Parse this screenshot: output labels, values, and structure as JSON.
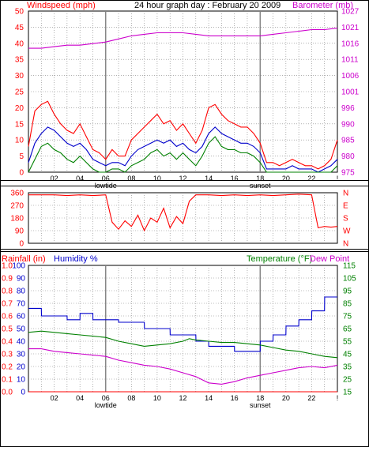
{
  "page": {
    "title": "24 hour graph day : February 20 2009"
  },
  "colors": {
    "red": "#ff0000",
    "blue": "#0000cc",
    "green": "#008000",
    "magenta": "#cc00cc",
    "gray": "#808080",
    "black": "#000000"
  },
  "chart_data": [
    {
      "type": "line",
      "name": "wind-barometer",
      "left_axis_label": "Windspeed (mph)",
      "right_axis_label": "Barometer (mb)",
      "x_ticks": [
        "02",
        "04",
        "06",
        "08",
        "10",
        "12",
        "14",
        "16",
        "18",
        "20",
        "22",
        "!"
      ],
      "x_markers": [
        {
          "label": "lowtide",
          "hour": 6
        },
        {
          "label": "sunset",
          "hour": 18
        }
      ],
      "left_ylim": [
        0,
        50
      ],
      "left_ticks": [
        0,
        5,
        10,
        15,
        20,
        25,
        30,
        35,
        40,
        45,
        50
      ],
      "right_ylim": [
        975,
        1027
      ],
      "right_ticks": [
        975,
        980,
        985,
        990,
        996,
        1001,
        1006,
        1011,
        1016,
        1021,
        1027
      ],
      "grid": true,
      "series": [
        {
          "role": "wind-gust",
          "color": "red",
          "axis": "left",
          "x": [
            0,
            0.5,
            1,
            1.5,
            2,
            2.5,
            3,
            3.5,
            4,
            4.5,
            5,
            5.5,
            6,
            6.5,
            7,
            7.5,
            8,
            8.5,
            9,
            9.5,
            10,
            10.5,
            11,
            11.5,
            12,
            12.5,
            13,
            13.5,
            14,
            14.5,
            15,
            15.5,
            16,
            16.5,
            17,
            17.5,
            18,
            18.5,
            19,
            19.5,
            20,
            20.5,
            21,
            21.5,
            22,
            22.5,
            23,
            23.5,
            24
          ],
          "y": [
            8,
            19,
            21,
            22,
            18,
            15,
            13,
            12,
            15,
            11,
            7,
            6,
            4,
            7,
            5,
            5,
            10,
            12,
            14,
            16,
            18,
            15,
            16,
            13,
            15,
            12,
            9,
            13,
            20,
            21,
            18,
            16,
            15,
            14,
            14,
            12,
            9,
            3,
            3,
            2,
            3,
            4,
            3,
            2,
            2,
            1,
            2,
            4,
            10
          ]
        },
        {
          "role": "wind-average",
          "color": "blue",
          "axis": "left",
          "x": [
            0,
            0.5,
            1,
            1.5,
            2,
            2.5,
            3,
            3.5,
            4,
            4.5,
            5,
            5.5,
            6,
            6.5,
            7,
            7.5,
            8,
            8.5,
            9,
            9.5,
            10,
            10.5,
            11,
            11.5,
            12,
            12.5,
            13,
            13.5,
            14,
            14.5,
            15,
            15.5,
            16,
            16.5,
            17,
            17.5,
            18,
            18.5,
            19,
            19.5,
            20,
            20.5,
            21,
            21.5,
            22,
            22.5,
            23,
            23.5,
            24
          ],
          "y": [
            3,
            9,
            12,
            14,
            13,
            11,
            9,
            8,
            9,
            7,
            4,
            3,
            2,
            3,
            3,
            2,
            5,
            7,
            8,
            9,
            10,
            9,
            10,
            8,
            9,
            7,
            6,
            8,
            12,
            14,
            12,
            11,
            10,
            9,
            9,
            8,
            6,
            1,
            1,
            1,
            1,
            2,
            1,
            1,
            1,
            0,
            1,
            2,
            4
          ]
        },
        {
          "role": "wind-low",
          "color": "green",
          "axis": "left",
          "x": [
            0,
            0.5,
            1,
            1.5,
            2,
            2.5,
            3,
            3.5,
            4,
            4.5,
            5,
            5.5,
            6,
            6.5,
            7,
            7.5,
            8,
            8.5,
            9,
            9.5,
            10,
            10.5,
            11,
            11.5,
            12,
            12.5,
            13,
            13.5,
            14,
            14.5,
            15,
            15.5,
            16,
            16.5,
            17,
            17.5,
            18,
            18.5,
            19,
            19.5,
            20,
            20.5,
            21,
            21.5,
            22,
            22.5,
            23,
            23.5,
            24
          ],
          "y": [
            0,
            4,
            8,
            9,
            7,
            6,
            4,
            3,
            5,
            3,
            1,
            0,
            0,
            1,
            1,
            0,
            2,
            3,
            4,
            6,
            7,
            5,
            6,
            4,
            6,
            4,
            2,
            5,
            9,
            11,
            8,
            7,
            7,
            6,
            6,
            5,
            3,
            0,
            0,
            0,
            0,
            0,
            0,
            0,
            0,
            0,
            0,
            0,
            2
          ]
        },
        {
          "role": "barometer",
          "color": "magenta",
          "axis": "right",
          "x": [
            0,
            1,
            2,
            3,
            4,
            5,
            6,
            7,
            8,
            9,
            10,
            11,
            12,
            13,
            14,
            15,
            16,
            17,
            18,
            19,
            20,
            21,
            22,
            23,
            24
          ],
          "y": [
            1015,
            1015,
            1015.5,
            1016,
            1016,
            1016.5,
            1017,
            1018,
            1019,
            1019.5,
            1020,
            1020,
            1020,
            1019.5,
            1019,
            1019,
            1019,
            1019,
            1019,
            1019.5,
            1020,
            1020.5,
            1021,
            1021,
            1021.5
          ]
        }
      ]
    },
    {
      "type": "line",
      "name": "wind-direction",
      "left_ticks": [
        0,
        90,
        180,
        270,
        360
      ],
      "ylim": [
        0,
        360
      ],
      "right_ticks": [
        "N",
        "W",
        "S",
        "E",
        "N"
      ],
      "grid": true,
      "series": [
        {
          "role": "wind-direction",
          "color": "red",
          "x": [
            0,
            1,
            2,
            3,
            4,
            5,
            6,
            6.5,
            7,
            7.5,
            8,
            8.5,
            9,
            9.5,
            10,
            10.5,
            11,
            11.5,
            12,
            12.5,
            13,
            14,
            15,
            16,
            17,
            18,
            19,
            20,
            21,
            22,
            22.5,
            23,
            23.5,
            24
          ],
          "y": [
            345,
            345,
            345,
            340,
            345,
            340,
            345,
            150,
            100,
            160,
            120,
            200,
            90,
            180,
            150,
            250,
            110,
            190,
            140,
            300,
            345,
            345,
            340,
            345,
            340,
            345,
            340,
            345,
            350,
            345,
            110,
            120,
            115,
            120
          ]
        }
      ]
    },
    {
      "type": "line",
      "name": "rain-humidity-temperature",
      "labels": [
        "Rainfall (in)",
        "Humidity %",
        "Temperature (°F)",
        "Dew Point"
      ],
      "rain_ticks": [
        "0.0",
        "0.1",
        "0.2",
        "0.3",
        "0.4",
        "0.5",
        "0.6",
        "0.7",
        "0.8",
        "0.9",
        "1.0"
      ],
      "humidity_ticks": [
        0,
        10,
        20,
        30,
        40,
        50,
        60,
        70,
        80,
        90,
        100
      ],
      "temperature_ticks": [
        15,
        25,
        35,
        45,
        55,
        65,
        75,
        85,
        95,
        105,
        115
      ],
      "temperature_ylim": [
        15,
        115
      ],
      "x_ticks": [
        "02",
        "04",
        "06",
        "08",
        "10",
        "12",
        "14",
        "16",
        "18",
        "20",
        "22",
        "!"
      ],
      "x_markers": [
        {
          "label": "lowtide",
          "hour": 6
        },
        {
          "label": "sunset",
          "hour": 18
        }
      ],
      "grid": true,
      "series": [
        {
          "role": "rainfall",
          "color": "red",
          "axis": "rain",
          "x": [
            0,
            24
          ],
          "y": [
            0,
            0
          ]
        },
        {
          "role": "humidity",
          "color": "blue",
          "axis": "humidity",
          "x": [
            0,
            1,
            1.01,
            3,
            3.01,
            4,
            4.01,
            5,
            5.01,
            7,
            7.01,
            9,
            9.01,
            11,
            11.01,
            13,
            13.01,
            14,
            14.01,
            16,
            16.01,
            18,
            18.01,
            19,
            19.01,
            20,
            20.01,
            21,
            21.01,
            22,
            22.01,
            23,
            23.01,
            24
          ],
          "y": [
            66,
            66,
            60,
            60,
            57,
            57,
            62,
            62,
            57,
            57,
            55,
            55,
            50,
            50,
            45,
            45,
            40,
            40,
            36,
            36,
            32,
            32,
            40,
            40,
            45,
            45,
            52,
            52,
            57,
            57,
            64,
            64,
            75,
            75
          ]
        },
        {
          "role": "temperature",
          "color": "green",
          "axis": "temperature",
          "x": [
            0,
            1,
            2,
            3,
            4,
            5,
            6,
            7,
            8,
            9,
            10,
            11,
            12,
            12.5,
            13,
            14,
            15,
            16,
            17,
            18,
            19,
            20,
            21,
            22,
            23,
            24
          ],
          "y": [
            62,
            63,
            62,
            61,
            60,
            59,
            58,
            55,
            53,
            51,
            52,
            53,
            55,
            57,
            56,
            55,
            54,
            54,
            53,
            52,
            50,
            48,
            47,
            45,
            43,
            42
          ]
        },
        {
          "role": "dew-point",
          "color": "magenta",
          "axis": "temperature",
          "x": [
            0,
            1,
            2,
            3,
            4,
            5,
            6,
            7,
            8,
            9,
            10,
            11,
            12,
            13,
            14,
            15,
            16,
            17,
            18,
            19,
            20,
            21,
            22,
            23,
            24
          ],
          "y": [
            49,
            49,
            47,
            46,
            45,
            44,
            43,
            40,
            38,
            36,
            35,
            33,
            30,
            27,
            22,
            21,
            23,
            26,
            28,
            30,
            32,
            34,
            35,
            34,
            36
          ]
        }
      ]
    }
  ]
}
